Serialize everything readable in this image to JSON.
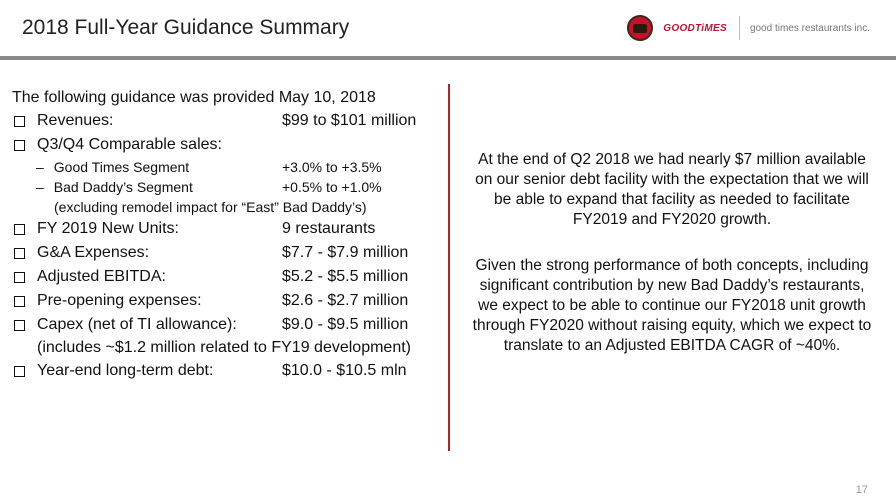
{
  "header": {
    "title": "2018 Full-Year Guidance Summary",
    "brand_logo_1": "bad-daddys-logo",
    "brand_logo_2": "GOODTiMES",
    "brand_text": "good times restaurants inc."
  },
  "guidance": {
    "intro": "The following guidance was provided May 10, 2018",
    "revenues": {
      "label": "Revenues:",
      "value": "$99 to $101 million"
    },
    "comparable_sales": {
      "label": "Q3/Q4 Comparable sales:"
    },
    "good_times": {
      "dash": "–",
      "label": "Good Times Segment",
      "value": "+3.0% to +3.5%"
    },
    "bad_daddys": {
      "dash": "–",
      "label": "Bad Daddy’s Segment",
      "value": "+0.5% to +1.0%"
    },
    "bad_daddys_note": "(excluding remodel impact for “East” Bad Daddy’s)",
    "new_units": {
      "label": "FY 2019 New Units:",
      "value": "9 restaurants"
    },
    "ga": {
      "label": "G&A Expenses:",
      "value": "$7.7 - $7.9 million"
    },
    "ebitda": {
      "label": "Adjusted EBITDA:",
      "value": "$5.2 - $5.5 million"
    },
    "preopening": {
      "label": "Pre-opening expenses:",
      "value": "$2.6 - $2.7 million"
    },
    "capex": {
      "label": "Capex (net of TI allowance):",
      "value": "$9.0 - $9.5 million"
    },
    "capex_note": "(includes ~$1.2 million related to FY19 development)",
    "debt": {
      "label": "Year-end long-term debt:",
      "value": "$10.0 - $10.5 mln"
    }
  },
  "commentary": {
    "p1": "At the end of Q2 2018 we had nearly $7 million available on our senior debt facility with the expectation that we will be able to expand that facility as needed to facilitate FY2019 and FY2020 growth.",
    "p2": "Given the strong performance of both concepts, including significant contribution by new Bad Daddy’s restaurants, we expect to be able to continue our FY2018 unit growth through FY2020 without raising equity, which we expect to translate to an Adjusted EBITDA CAGR of ~40%."
  },
  "footer": {
    "page_number": "17"
  }
}
